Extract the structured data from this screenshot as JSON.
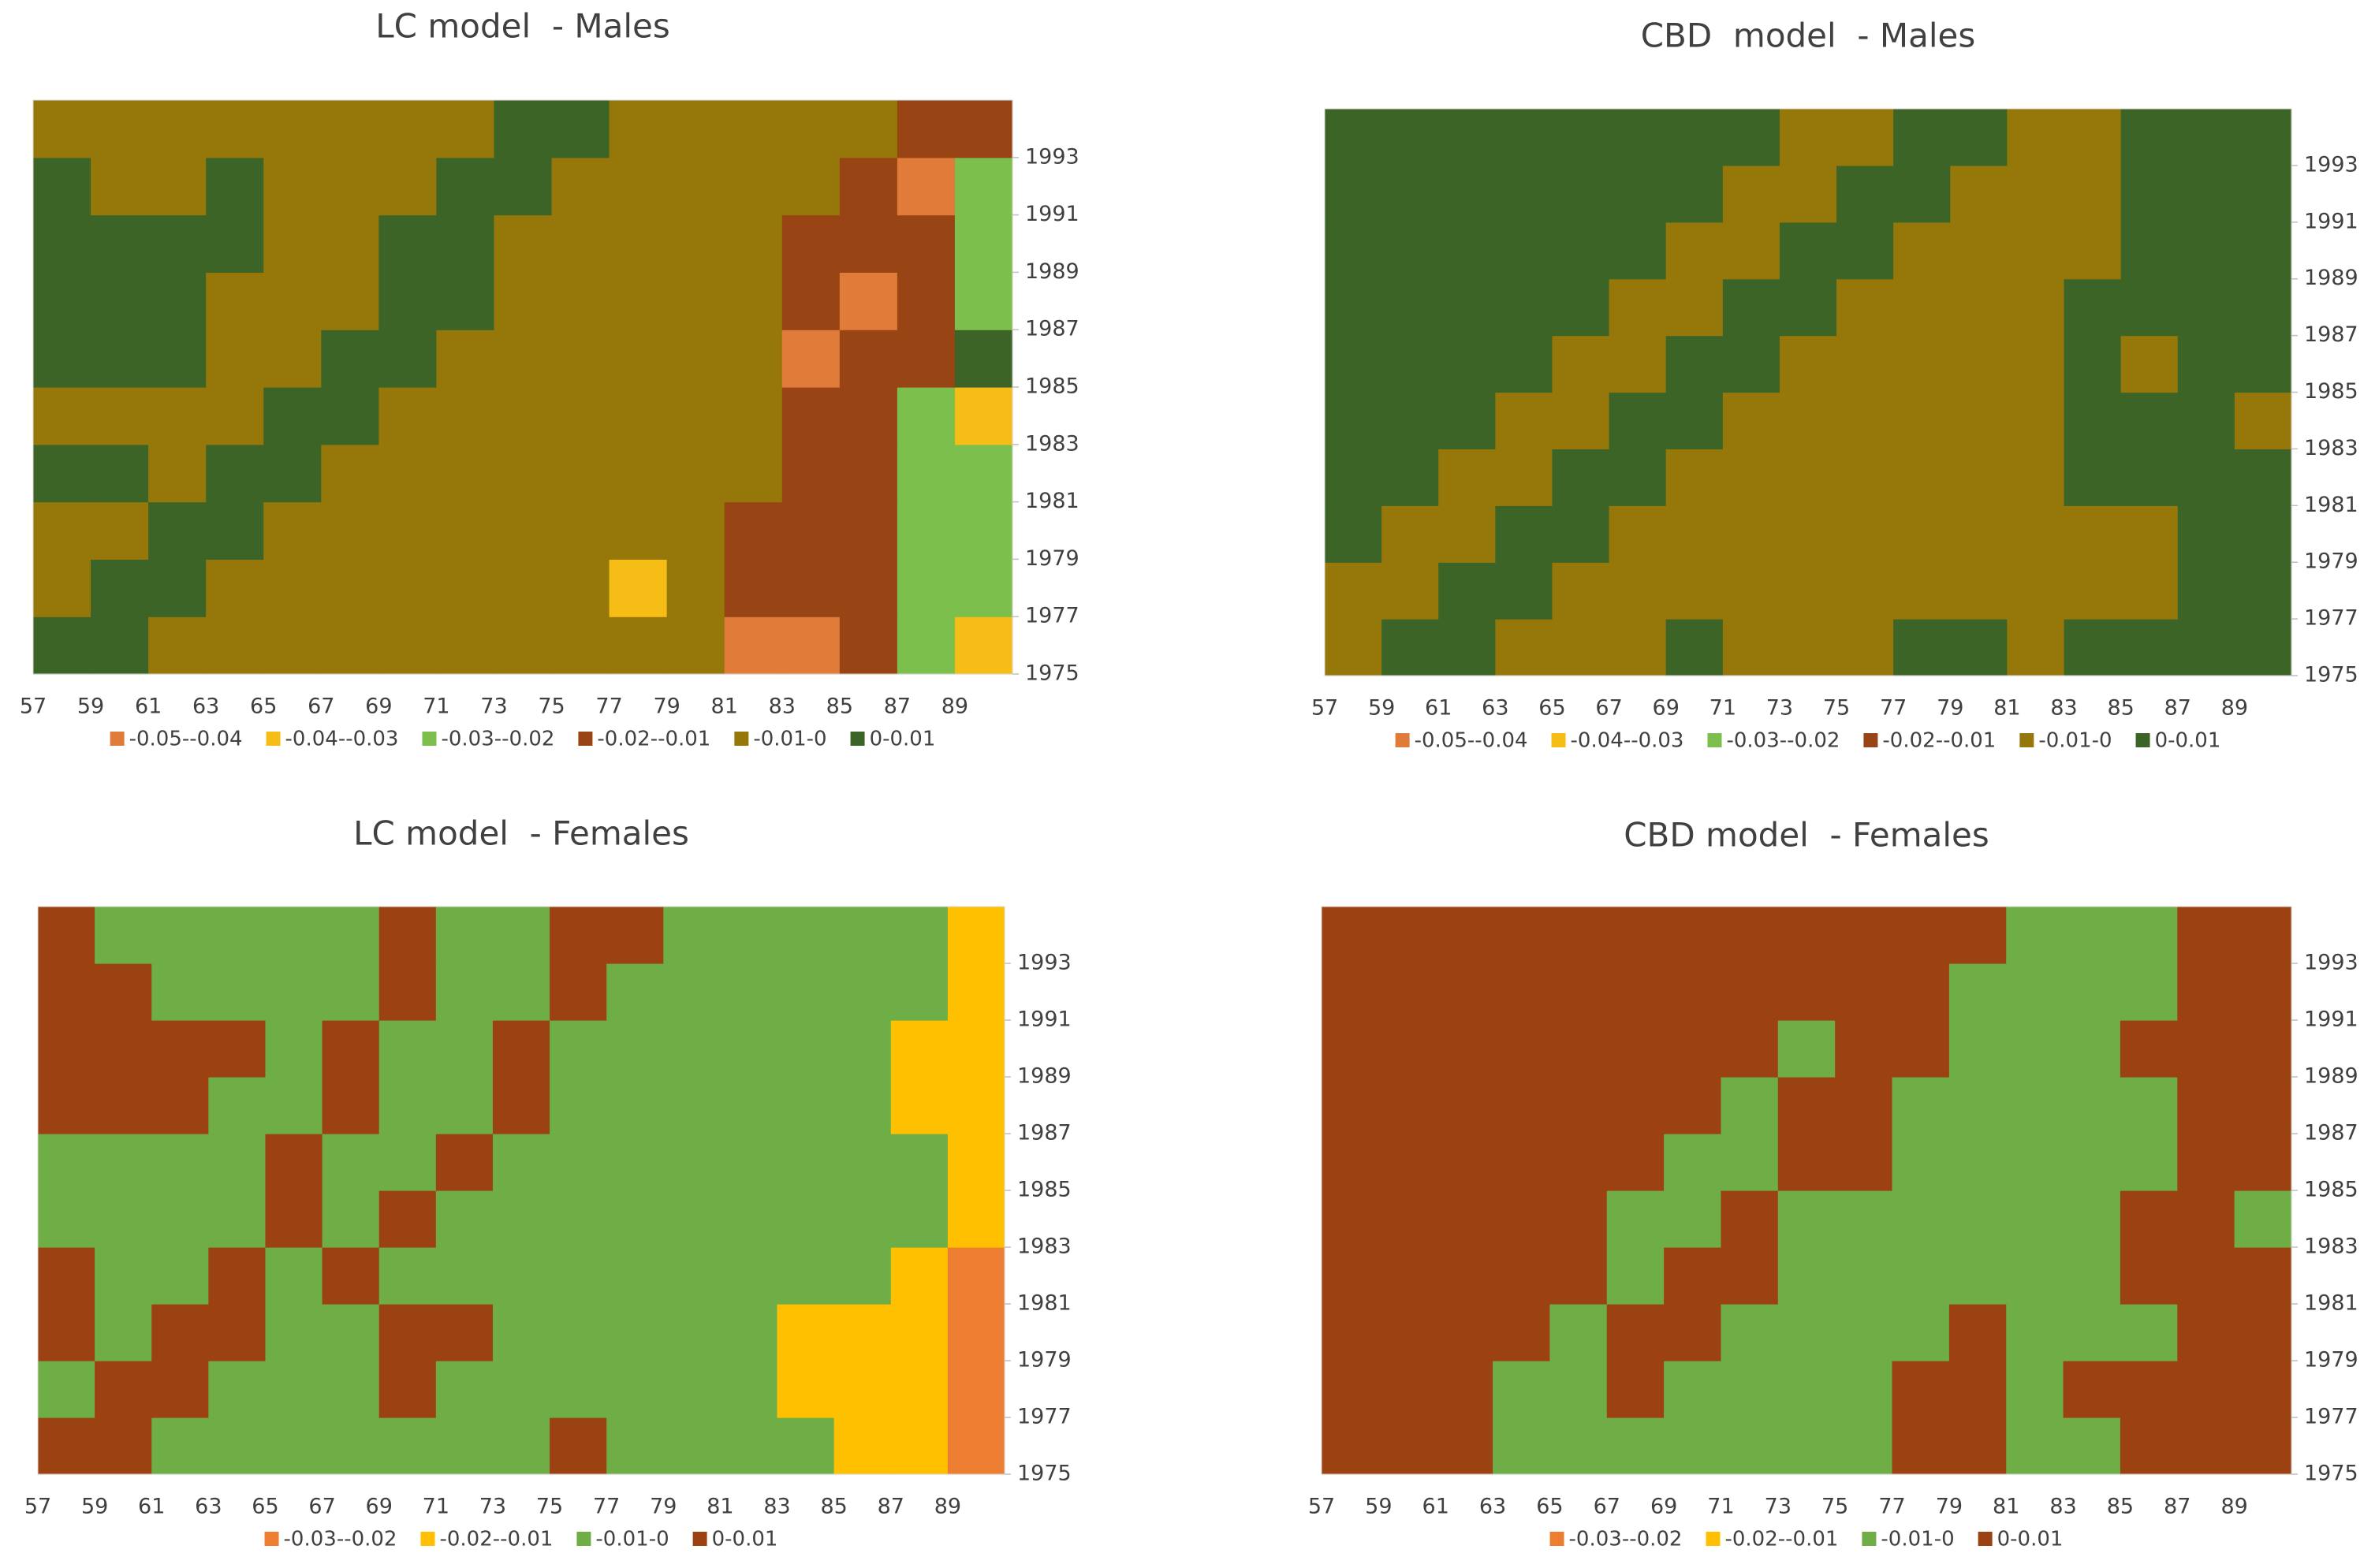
{
  "chart_data": [
    {
      "type": "heatmap",
      "title": "LC model  - Males",
      "x": [
        57,
        59,
        61,
        63,
        65,
        67,
        69,
        71,
        73,
        75,
        77,
        79,
        81,
        83,
        85,
        87,
        89
      ],
      "y": [
        1975,
        1977,
        1979,
        1981,
        1983,
        1985,
        1987,
        1989,
        1991,
        1993
      ],
      "levels": [
        -0.05,
        -0.04,
        -0.03,
        -0.02,
        -0.01,
        0,
        0.01
      ],
      "series": [
        {
          "name": "-0.05--0.04",
          "color": "#e07b39"
        },
        {
          "name": "-0.04--0.03",
          "color": "#f5bd16"
        },
        {
          "name": "-0.03--0.02",
          "color": "#7cbf4c"
        },
        {
          "name": "-0.02--0.01",
          "color": "#994415"
        },
        {
          "name": "-0.01-0",
          "color": "#96780a"
        },
        {
          "name": "0-0.01",
          "color": "#3d6427"
        }
      ],
      "z": [
        [
          0.005,
          0.005,
          -0.005,
          -0.005,
          -0.005,
          -0.005,
          -0.005,
          -0.005,
          -0.005,
          -0.005,
          -0.005,
          -0.005,
          -0.045,
          -0.045,
          -0.015,
          -0.025,
          -0.035
        ],
        [
          -0.005,
          0.005,
          0.005,
          -0.005,
          -0.005,
          -0.005,
          -0.005,
          -0.005,
          -0.005,
          -0.005,
          -0.035,
          -0.005,
          -0.015,
          -0.015,
          -0.015,
          -0.025,
          -0.025
        ],
        [
          -0.005,
          -0.005,
          0.005,
          0.005,
          -0.005,
          -0.005,
          -0.005,
          -0.005,
          -0.005,
          -0.005,
          -0.005,
          -0.005,
          -0.015,
          -0.015,
          -0.015,
          -0.025,
          -0.025
        ],
        [
          0.005,
          0.005,
          -0.005,
          0.005,
          0.005,
          -0.005,
          -0.005,
          -0.005,
          -0.005,
          -0.005,
          -0.005,
          -0.005,
          -0.005,
          -0.015,
          -0.015,
          -0.025,
          -0.025
        ],
        [
          -0.005,
          -0.005,
          -0.005,
          -0.005,
          0.005,
          0.005,
          -0.005,
          -0.005,
          -0.005,
          -0.005,
          -0.005,
          -0.005,
          -0.005,
          -0.015,
          -0.015,
          -0.025,
          -0.035
        ],
        [
          0.005,
          0.005,
          0.005,
          -0.005,
          -0.005,
          0.005,
          0.005,
          -0.005,
          -0.005,
          -0.005,
          -0.005,
          -0.005,
          -0.005,
          -0.045,
          -0.015,
          -0.015,
          0.005
        ],
        [
          0.005,
          0.005,
          0.005,
          -0.005,
          -0.005,
          -0.005,
          0.005,
          0.005,
          -0.005,
          -0.005,
          -0.005,
          -0.005,
          -0.005,
          -0.015,
          -0.045,
          -0.015,
          -0.025
        ],
        [
          0.005,
          0.005,
          0.005,
          0.005,
          -0.005,
          -0.005,
          0.005,
          0.005,
          -0.005,
          -0.005,
          -0.005,
          -0.005,
          -0.005,
          -0.015,
          -0.015,
          -0.015,
          -0.025
        ],
        [
          0.005,
          -0.005,
          -0.005,
          0.005,
          -0.005,
          -0.005,
          -0.005,
          0.005,
          0.005,
          -0.005,
          -0.005,
          -0.005,
          -0.005,
          -0.005,
          -0.015,
          -0.045,
          -0.025
        ],
        [
          -0.005,
          -0.005,
          -0.005,
          -0.005,
          -0.005,
          -0.005,
          -0.005,
          -0.005,
          0.005,
          0.005,
          -0.005,
          -0.005,
          -0.005,
          -0.005,
          -0.005,
          -0.015,
          -0.015
        ]
      ]
    },
    {
      "type": "heatmap",
      "title": "CBD  model  - Males",
      "x": [
        57,
        59,
        61,
        63,
        65,
        67,
        69,
        71,
        73,
        75,
        77,
        79,
        81,
        83,
        85,
        87,
        89
      ],
      "y": [
        1975,
        1977,
        1979,
        1981,
        1983,
        1985,
        1987,
        1989,
        1991,
        1993
      ],
      "levels": [
        -0.05,
        -0.04,
        -0.03,
        -0.02,
        -0.01,
        0,
        0.01
      ],
      "series": [
        {
          "name": "-0.05--0.04",
          "color": "#e07b39"
        },
        {
          "name": "-0.04--0.03",
          "color": "#f5bd16"
        },
        {
          "name": "-0.03--0.02",
          "color": "#7cbf4c"
        },
        {
          "name": "-0.02--0.01",
          "color": "#994415"
        },
        {
          "name": "-0.01-0",
          "color": "#96780a"
        },
        {
          "name": "0-0.01",
          "color": "#3d6427"
        }
      ],
      "z": [
        [
          -0.005,
          0.005,
          0.005,
          -0.005,
          -0.005,
          -0.005,
          0.005,
          -0.005,
          -0.005,
          -0.005,
          0.005,
          0.005,
          -0.005,
          0.005,
          0.005,
          0.005,
          0.005
        ],
        [
          -0.005,
          -0.005,
          0.005,
          0.005,
          -0.005,
          -0.005,
          -0.005,
          -0.005,
          -0.005,
          -0.005,
          -0.005,
          -0.005,
          -0.005,
          -0.005,
          -0.005,
          0.005,
          0.005
        ],
        [
          0.005,
          -0.005,
          -0.005,
          0.005,
          0.005,
          -0.005,
          -0.005,
          -0.005,
          -0.005,
          -0.005,
          -0.005,
          -0.005,
          -0.005,
          -0.005,
          -0.005,
          0.005,
          0.005
        ],
        [
          0.005,
          0.005,
          -0.005,
          -0.005,
          0.005,
          0.005,
          -0.005,
          -0.005,
          -0.005,
          -0.005,
          -0.005,
          -0.005,
          -0.005,
          0.005,
          0.005,
          0.005,
          0.005
        ],
        [
          0.005,
          0.005,
          0.005,
          -0.005,
          -0.005,
          0.005,
          0.005,
          -0.005,
          -0.005,
          -0.005,
          -0.005,
          -0.005,
          -0.005,
          0.005,
          0.005,
          0.005,
          -0.005
        ],
        [
          0.005,
          0.005,
          0.005,
          0.005,
          -0.005,
          -0.005,
          0.005,
          0.005,
          -0.005,
          -0.005,
          -0.005,
          -0.005,
          -0.005,
          0.005,
          -0.005,
          0.005,
          0.005
        ],
        [
          0.005,
          0.005,
          0.005,
          0.005,
          0.005,
          -0.005,
          -0.005,
          0.005,
          0.005,
          -0.005,
          -0.005,
          -0.005,
          -0.005,
          0.005,
          0.005,
          0.005,
          0.005
        ],
        [
          0.005,
          0.005,
          0.005,
          0.005,
          0.005,
          0.005,
          -0.005,
          -0.005,
          0.005,
          0.005,
          -0.005,
          -0.005,
          -0.005,
          -0.005,
          0.005,
          0.005,
          0.005
        ],
        [
          0.005,
          0.005,
          0.005,
          0.005,
          0.005,
          0.005,
          0.005,
          -0.005,
          -0.005,
          0.005,
          0.005,
          -0.005,
          -0.005,
          -0.005,
          0.005,
          0.005,
          0.005
        ],
        [
          0.005,
          0.005,
          0.005,
          0.005,
          0.005,
          0.005,
          0.005,
          0.005,
          -0.005,
          -0.005,
          0.005,
          0.005,
          -0.005,
          -0.005,
          0.005,
          0.005,
          0.005
        ]
      ]
    },
    {
      "type": "heatmap",
      "title": "LC model  - Females",
      "x": [
        57,
        59,
        61,
        63,
        65,
        67,
        69,
        71,
        73,
        75,
        77,
        79,
        81,
        83,
        85,
        87,
        89
      ],
      "y": [
        1975,
        1977,
        1979,
        1981,
        1983,
        1985,
        1987,
        1989,
        1991,
        1993
      ],
      "levels": [
        -0.03,
        -0.02,
        -0.01,
        0,
        0.01
      ],
      "series": [
        {
          "name": "-0.03--0.02",
          "color": "#ed7d31"
        },
        {
          "name": "-0.02--0.01",
          "color": "#ffc000"
        },
        {
          "name": "-0.01-0",
          "color": "#6fad46"
        },
        {
          "name": "0-0.01",
          "color": "#9c4212"
        }
      ],
      "z": [
        [
          0.005,
          0.005,
          -0.005,
          -0.005,
          -0.005,
          -0.005,
          -0.005,
          -0.005,
          -0.005,
          0.005,
          -0.005,
          -0.005,
          -0.005,
          -0.005,
          -0.015,
          -0.015,
          -0.025
        ],
        [
          -0.005,
          0.005,
          0.005,
          -0.005,
          -0.005,
          -0.005,
          0.005,
          -0.005,
          -0.005,
          -0.005,
          -0.005,
          -0.005,
          -0.005,
          -0.015,
          -0.015,
          -0.015,
          -0.025
        ],
        [
          0.005,
          -0.005,
          0.005,
          0.005,
          -0.005,
          -0.005,
          0.005,
          0.005,
          -0.005,
          -0.005,
          -0.005,
          -0.005,
          -0.005,
          -0.015,
          -0.015,
          -0.015,
          -0.025
        ],
        [
          0.005,
          -0.005,
          -0.005,
          0.005,
          -0.005,
          0.005,
          -0.005,
          -0.005,
          -0.005,
          -0.005,
          -0.005,
          -0.005,
          -0.005,
          -0.005,
          -0.005,
          -0.015,
          -0.025
        ],
        [
          -0.005,
          -0.005,
          -0.005,
          -0.005,
          0.005,
          -0.005,
          0.005,
          -0.005,
          -0.005,
          -0.005,
          -0.005,
          -0.005,
          -0.005,
          -0.005,
          -0.005,
          -0.005,
          -0.015
        ],
        [
          -0.005,
          -0.005,
          -0.005,
          -0.005,
          0.005,
          -0.005,
          -0.005,
          0.005,
          -0.005,
          -0.005,
          -0.005,
          -0.005,
          -0.005,
          -0.005,
          -0.005,
          -0.005,
          -0.015
        ],
        [
          0.005,
          0.005,
          0.005,
          -0.005,
          -0.005,
          0.005,
          -0.005,
          -0.005,
          0.005,
          -0.005,
          -0.005,
          -0.005,
          -0.005,
          -0.005,
          -0.005,
          -0.015,
          -0.015
        ],
        [
          0.005,
          0.005,
          0.005,
          0.005,
          -0.005,
          0.005,
          -0.005,
          -0.005,
          0.005,
          -0.005,
          -0.005,
          -0.005,
          -0.005,
          -0.005,
          -0.005,
          -0.015,
          -0.015
        ],
        [
          0.005,
          0.005,
          -0.005,
          -0.005,
          -0.005,
          -0.005,
          0.005,
          -0.005,
          -0.005,
          0.005,
          -0.005,
          -0.005,
          -0.005,
          -0.005,
          -0.005,
          -0.005,
          -0.015
        ],
        [
          0.005,
          -0.005,
          -0.005,
          -0.005,
          -0.005,
          -0.005,
          0.005,
          -0.005,
          -0.005,
          0.005,
          0.005,
          -0.005,
          -0.005,
          -0.005,
          -0.005,
          -0.005,
          -0.015
        ]
      ]
    },
    {
      "type": "heatmap",
      "title": "CBD model  - Females",
      "x": [
        57,
        59,
        61,
        63,
        65,
        67,
        69,
        71,
        73,
        75,
        77,
        79,
        81,
        83,
        85,
        87,
        89
      ],
      "y": [
        1975,
        1977,
        1979,
        1981,
        1983,
        1985,
        1987,
        1989,
        1991,
        1993
      ],
      "levels": [
        -0.03,
        -0.02,
        -0.01,
        0,
        0.01
      ],
      "series": [
        {
          "name": "-0.03--0.02",
          "color": "#ed7d31"
        },
        {
          "name": "-0.02--0.01",
          "color": "#ffc000"
        },
        {
          "name": "-0.01-0",
          "color": "#6fad46"
        },
        {
          "name": "0-0.01",
          "color": "#9c4212"
        }
      ],
      "z": [
        [
          0.005,
          0.005,
          0.005,
          -0.005,
          -0.005,
          -0.005,
          -0.005,
          -0.005,
          -0.005,
          -0.005,
          0.005,
          0.005,
          -0.005,
          -0.005,
          0.005,
          0.005,
          0.005
        ],
        [
          0.005,
          0.005,
          0.005,
          -0.005,
          -0.005,
          0.005,
          -0.005,
          -0.005,
          -0.005,
          -0.005,
          0.005,
          0.005,
          -0.005,
          0.005,
          0.005,
          0.005,
          0.005
        ],
        [
          0.005,
          0.005,
          0.005,
          0.005,
          -0.005,
          0.005,
          0.005,
          -0.005,
          -0.005,
          -0.005,
          -0.005,
          0.005,
          -0.005,
          -0.005,
          -0.005,
          0.005,
          0.005
        ],
        [
          0.005,
          0.005,
          0.005,
          0.005,
          0.005,
          -0.005,
          0.005,
          0.005,
          -0.005,
          -0.005,
          -0.005,
          -0.005,
          -0.005,
          -0.005,
          0.005,
          0.005,
          0.005
        ],
        [
          0.005,
          0.005,
          0.005,
          0.005,
          0.005,
          -0.005,
          -0.005,
          0.005,
          -0.005,
          -0.005,
          -0.005,
          -0.005,
          -0.005,
          -0.005,
          0.005,
          0.005,
          -0.005
        ],
        [
          0.005,
          0.005,
          0.005,
          0.005,
          0.005,
          0.005,
          -0.005,
          -0.005,
          0.005,
          0.005,
          -0.005,
          -0.005,
          -0.005,
          -0.005,
          -0.005,
          0.005,
          0.005
        ],
        [
          0.005,
          0.005,
          0.005,
          0.005,
          0.005,
          0.005,
          0.005,
          -0.005,
          0.005,
          0.005,
          -0.005,
          -0.005,
          -0.005,
          -0.005,
          -0.005,
          0.005,
          0.005
        ],
        [
          0.005,
          0.005,
          0.005,
          0.005,
          0.005,
          0.005,
          0.005,
          0.005,
          -0.005,
          0.005,
          0.005,
          -0.005,
          -0.005,
          -0.005,
          0.005,
          0.005,
          0.005
        ],
        [
          0.005,
          0.005,
          0.005,
          0.005,
          0.005,
          0.005,
          0.005,
          0.005,
          0.005,
          0.005,
          0.005,
          -0.005,
          -0.005,
          -0.005,
          -0.005,
          0.005,
          0.005
        ],
        [
          0.005,
          0.005,
          0.005,
          0.005,
          0.005,
          0.005,
          0.005,
          0.005,
          0.005,
          0.005,
          0.005,
          0.005,
          -0.005,
          -0.005,
          -0.005,
          0.005,
          0.005
        ]
      ]
    }
  ]
}
